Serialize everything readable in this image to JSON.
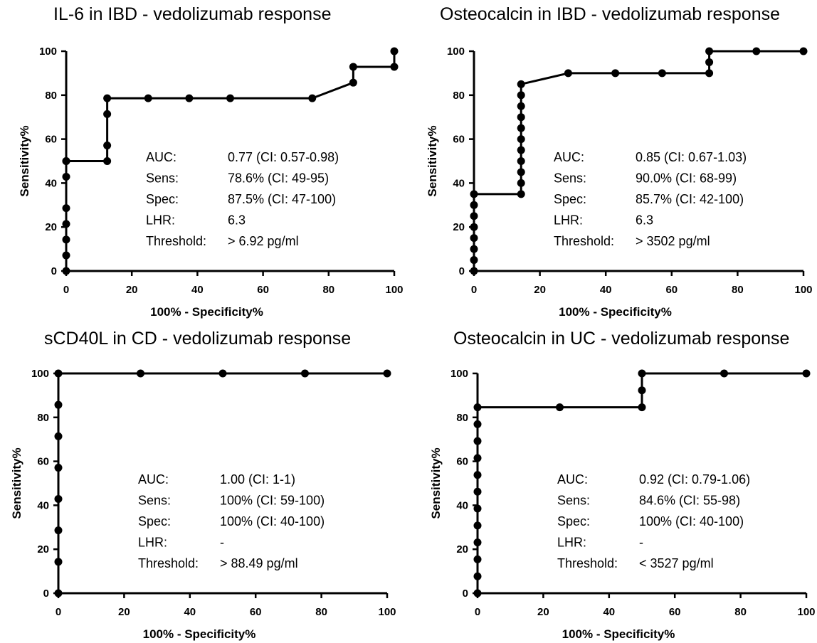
{
  "chart_data": [
    {
      "type": "line",
      "title": "IL-6 in IBD - vedolizumab response",
      "xlabel": "100% - Specificity%",
      "ylabel": "Sensitivity%",
      "xlim": [
        0,
        100
      ],
      "ylim": [
        0,
        100
      ],
      "xticks": [
        "0",
        "20",
        "40",
        "60",
        "80",
        "100"
      ],
      "yticks": [
        "0",
        "20",
        "40",
        "60",
        "80",
        "100"
      ],
      "series": [
        {
          "x": [
            0,
            0,
            0,
            0,
            0,
            0,
            0,
            0,
            12.5,
            12.5,
            12.5,
            12.5,
            25,
            37.5,
            50,
            75,
            87.5,
            87.5,
            100,
            100
          ],
          "y": [
            0,
            7.1,
            14.3,
            21.4,
            28.6,
            42.9,
            50,
            50,
            50,
            57.1,
            71.4,
            78.6,
            78.6,
            78.6,
            78.6,
            78.6,
            85.7,
            92.9,
            92.9,
            100
          ]
        }
      ],
      "stats": [
        {
          "label": "AUC:",
          "value": "0.77 (CI: 0.57-0.98)"
        },
        {
          "label": "Sens:",
          "value": "78.6% (CI: 49-95)"
        },
        {
          "label": "Spec:",
          "value": "87.5% (CI: 47-100)"
        },
        {
          "label": "LHR:",
          "value": "6.3"
        },
        {
          "label": "Threshold:",
          "value": "> 6.92 pg/ml"
        }
      ],
      "color": "#000000"
    },
    {
      "type": "line",
      "title": "Osteocalcin in IBD - vedolizumab response",
      "xlabel": "100% - Specificity%",
      "ylabel": "Sensitivity%",
      "xlim": [
        0,
        100
      ],
      "ylim": [
        0,
        100
      ],
      "xticks": [
        "0",
        "20",
        "40",
        "60",
        "80",
        "100"
      ],
      "yticks": [
        "0",
        "20",
        "40",
        "60",
        "80",
        "100"
      ],
      "series": [
        {
          "x": [
            0,
            0,
            0,
            0,
            0,
            0,
            0,
            0,
            14.3,
            14.3,
            14.3,
            14.3,
            14.3,
            14.3,
            14.3,
            14.3,
            14.3,
            14.3,
            14.3,
            28.6,
            42.9,
            57.1,
            71.4,
            71.4,
            71.4,
            85.7,
            100
          ],
          "y": [
            0,
            5,
            10,
            15,
            20,
            25,
            30,
            35,
            35,
            40,
            45,
            50,
            55,
            60,
            65,
            70,
            75,
            80,
            85,
            90,
            90,
            90,
            90,
            95,
            100,
            100,
            100
          ]
        }
      ],
      "stats": [
        {
          "label": "AUC:",
          "value": "0.85 (CI: 0.67-1.03)"
        },
        {
          "label": "Sens:",
          "value": "90.0% (CI: 68-99)"
        },
        {
          "label": "Spec:",
          "value": "85.7% (CI: 42-100)"
        },
        {
          "label": "LHR:",
          "value": "6.3"
        },
        {
          "label": "Threshold:",
          "value": "> 3502 pg/ml"
        }
      ],
      "color": "#000000"
    },
    {
      "type": "line",
      "title": "sCD40L in CD - vedolizumab response",
      "xlabel": "100% - Specificity%",
      "ylabel": "Sensitivity%",
      "xlim": [
        0,
        100
      ],
      "ylim": [
        0,
        100
      ],
      "xticks": [
        "0",
        "20",
        "40",
        "60",
        "80",
        "100"
      ],
      "yticks": [
        "0",
        "20",
        "40",
        "60",
        "80",
        "100"
      ],
      "series": [
        {
          "x": [
            0,
            0,
            0,
            0,
            0,
            0,
            0,
            0,
            25,
            50,
            75,
            100
          ],
          "y": [
            0,
            14.3,
            28.6,
            42.9,
            57.1,
            71.4,
            85.7,
            100,
            100,
            100,
            100,
            100
          ]
        }
      ],
      "stats": [
        {
          "label": "AUC:",
          "value": "1.00 (CI: 1-1)"
        },
        {
          "label": "Sens:",
          "value": "100% (CI: 59-100)"
        },
        {
          "label": "Spec:",
          "value": "100% (CI: 40-100)"
        },
        {
          "label": "LHR:",
          "value": "-"
        },
        {
          "label": "Threshold:",
          "value": "> 88.49 pg/ml"
        }
      ],
      "color": "#000000"
    },
    {
      "type": "line",
      "title": "Osteocalcin in UC - vedolizumab response",
      "xlabel": "100% - Specificity%",
      "ylabel": "Sensitivity%",
      "xlim": [
        0,
        100
      ],
      "ylim": [
        0,
        100
      ],
      "xticks": [
        "0",
        "20",
        "40",
        "60",
        "80",
        "100"
      ],
      "yticks": [
        "0",
        "20",
        "40",
        "60",
        "80",
        "100"
      ],
      "series": [
        {
          "x": [
            0,
            0,
            0,
            0,
            0,
            0,
            0,
            0,
            0,
            0,
            0,
            0,
            25,
            50,
            50,
            50,
            75,
            100
          ],
          "y": [
            0,
            7.7,
            15.4,
            23.1,
            30.8,
            38.5,
            46.2,
            53.8,
            61.5,
            69.2,
            76.9,
            84.6,
            84.6,
            84.6,
            92.3,
            100,
            100,
            100
          ]
        }
      ],
      "stats": [
        {
          "label": "AUC:",
          "value": "0.92 (CI: 0.79-1.06)"
        },
        {
          "label": "Sens:",
          "value": "84.6% (CI: 55-98)"
        },
        {
          "label": "Spec:",
          "value": "100%  (CI: 40-100)"
        },
        {
          "label": "LHR:",
          "value": "-"
        },
        {
          "label": "Threshold:",
          "value": "< 3527 pg/ml"
        }
      ],
      "color": "#000000"
    }
  ]
}
